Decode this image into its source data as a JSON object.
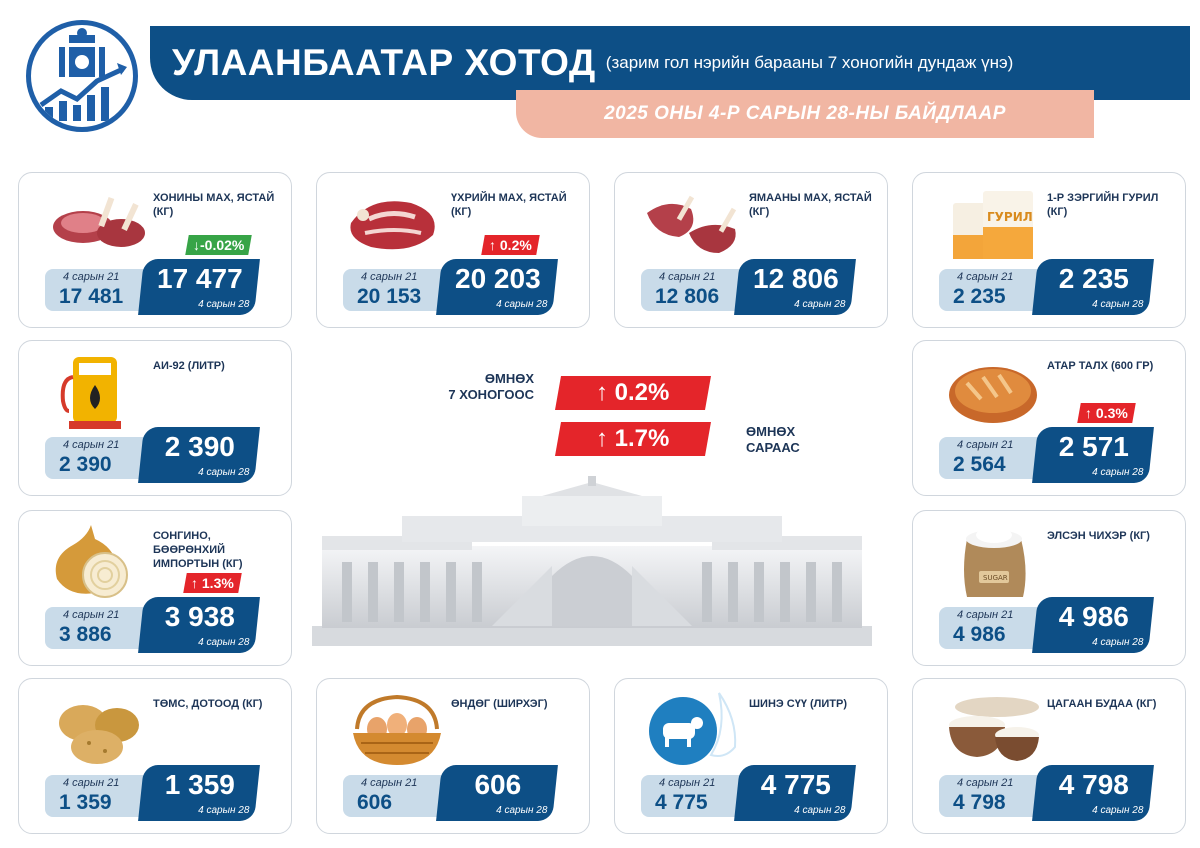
{
  "header": {
    "title": "УЛААНБААТАР ХОТОД",
    "subtitle": "(зарим гол нэрийн барааны 7 хоногийн дундаж үнэ)",
    "date": "2025 ОНЫ 4-Р САРЫН 28-НЫ БАЙДЛААР"
  },
  "center": {
    "week_label_1": "ӨМНӨХ",
    "week_label_2": "7 ХОНОГООС",
    "week_change": "↑  0.2%",
    "month_change": "↑  1.7%",
    "month_label_1": "ӨМНӨХ",
    "month_label_2": "САРААС"
  },
  "colors": {
    "accent": "#0d4f86",
    "up": "#e4252a",
    "down": "#37a447",
    "date_band": "#f1b6a3"
  },
  "cards": [
    {
      "name": "ХОНИНЫ МАХ, ЯСТАЙ (КГ)",
      "prev_label": "4 сарын 21",
      "prev": "17 481",
      "cur": "17 477",
      "cur_label": "4 сарын 28",
      "badge": "↓-0.02%",
      "badge_type": "down",
      "icon": "mutton-ribs-icon"
    },
    {
      "name": "ҮХРИЙН МАХ, ЯСТАЙ (КГ)",
      "prev_label": "4 сарын 21",
      "prev": "20 153",
      "cur": "20 203",
      "cur_label": "4 сарын 28",
      "badge": "↑ 0.2%",
      "badge_type": "up",
      "icon": "beef-icon"
    },
    {
      "name": "ЯМААНЫ МАХ, ЯСТАЙ (КГ)",
      "prev_label": "4 сарын 21",
      "prev": "12 806",
      "cur": "12 806",
      "cur_label": "4 сарын 28",
      "badge": "",
      "badge_type": "",
      "icon": "goat-meat-icon"
    },
    {
      "name": "1-Р ЗЭРГИЙН ГУРИЛ (КГ)",
      "prev_label": "4 сарын 21",
      "prev": "2 235",
      "cur": "2 235",
      "cur_label": "4 сарын 28",
      "badge": "",
      "badge_type": "",
      "icon": "flour-bag-icon"
    },
    {
      "name": "АИ-92 (ЛИТР)",
      "prev_label": "4 сарын 21",
      "prev": "2 390",
      "cur": "2 390",
      "cur_label": "4 сарын 28",
      "badge": "",
      "badge_type": "",
      "icon": "fuel-pump-icon"
    },
    {
      "name": "АТАР ТАЛХ (600 ГР)",
      "prev_label": "4 сарын 21",
      "prev": "2 564",
      "cur": "2 571",
      "cur_label": "4 сарын 28",
      "badge": "↑ 0.3%",
      "badge_type": "up",
      "icon": "bread-icon"
    },
    {
      "name": "СОНГИНО, БӨӨРӨНХИЙ ИМПОРТЫН (КГ)",
      "prev_label": "4 сарын 21",
      "prev": "3 886",
      "cur": "3 938",
      "cur_label": "4 сарын 28",
      "badge": "↑ 1.3%",
      "badge_type": "up",
      "icon": "onion-icon"
    },
    {
      "name": "ЭЛСЭН ЧИХЭР (КГ)",
      "prev_label": "4 сарын 21",
      "prev": "4 986",
      "cur": "4 986",
      "cur_label": "4 сарын 28",
      "badge": "",
      "badge_type": "",
      "icon": "sugar-sack-icon",
      "icon_text": "SUGAR"
    },
    {
      "name": "ТӨМС, ДОТООД (КГ)",
      "prev_label": "4 сарын 21",
      "prev": "1 359",
      "cur": "1 359",
      "cur_label": "4 сарын 28",
      "badge": "",
      "badge_type": "",
      "icon": "potato-icon"
    },
    {
      "name": "ӨНДӨГ (ШИРХЭГ)",
      "prev_label": "4 сарын 21",
      "prev": "606",
      "cur": "606",
      "cur_label": "4 сарын 28",
      "badge": "",
      "badge_type": "",
      "icon": "egg-basket-icon"
    },
    {
      "name": "ШИНЭ СҮҮ (ЛИТР)",
      "prev_label": "4 сарын 21",
      "prev": "4 775",
      "cur": "4 775",
      "cur_label": "4 сарын 28",
      "badge": "",
      "badge_type": "",
      "icon": "milk-cow-icon"
    },
    {
      "name": "ЦАГААН БУДАА (КГ)",
      "prev_label": "4 сарын 21",
      "prev": "4 798",
      "cur": "4 798",
      "cur_label": "4 сарын 28",
      "badge": "",
      "badge_type": "",
      "icon": "rice-bowl-icon"
    }
  ]
}
